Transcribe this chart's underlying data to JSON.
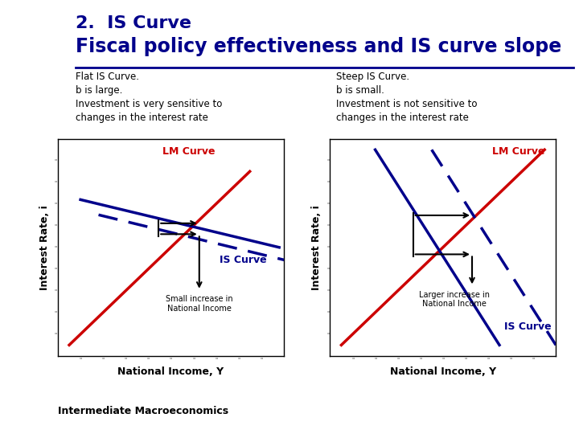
{
  "title_line1": "2.  IS Curve",
  "title_line2": "Fiscal policy effectiveness and IS curve slope",
  "title_color": "#00008B",
  "title1_fontsize": 16,
  "title2_fontsize": 17,
  "divider_color": "#00008B",
  "footer_text": "Intermediate Macroeconomics",
  "footer_fontsize": 9,
  "panel_left": {
    "desc_lines": [
      "Flat IS Curve.",
      "b is large.",
      "Investment is very sensitive to",
      "changes in the interest rate"
    ],
    "xlabel": "National Income, Y",
    "ylabel": "Interest Rate, i",
    "lm_label": "LM Curve",
    "is_label": "IS Curve",
    "lm_color": "#cc0000",
    "is_color": "#00008B",
    "arrow_label": "Small increase in\nNational Income"
  },
  "panel_right": {
    "desc_lines": [
      "Steep IS Curve.",
      "b is small.",
      "Investment is not sensitive to",
      "changes in the interest rate"
    ],
    "xlabel": "National Income, Y",
    "ylabel": "Interest Rate, i",
    "lm_label": "LM Curve",
    "is_label": "IS Curve",
    "lm_color": "#cc0000",
    "is_color": "#00008B",
    "arrow_label": "Larger increase in\nNational Income"
  }
}
